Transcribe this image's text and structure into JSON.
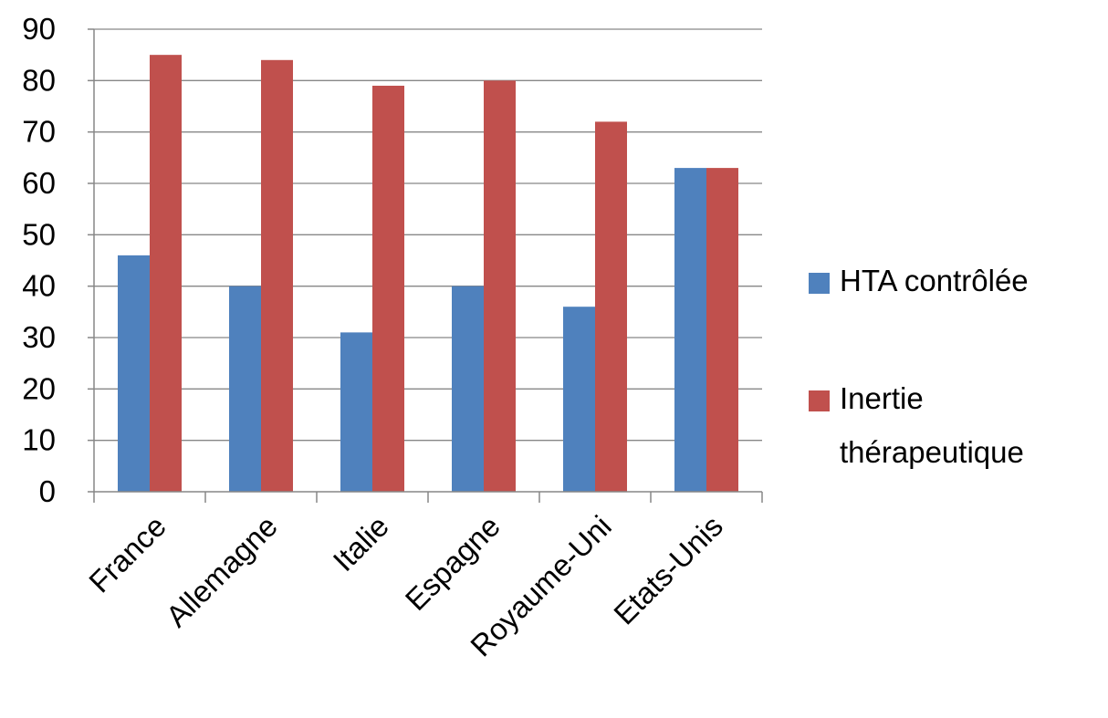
{
  "chart_data": {
    "type": "bar",
    "title": "",
    "xlabel": "",
    "ylabel": "",
    "categories": [
      "France",
      "Allemagne",
      "Italie",
      "Espagne",
      "Royaume-Uni",
      "Etats-Unis"
    ],
    "series": [
      {
        "name": "HTA contrôlée",
        "values": [
          46,
          40,
          31,
          40,
          36,
          63
        ],
        "color": "#4F81BD"
      },
      {
        "name": "Inertie thérapeutique",
        "values": [
          85,
          84,
          79,
          80,
          72,
          63
        ],
        "color": "#C0504D"
      }
    ],
    "ylim": [
      0,
      90
    ],
    "yticks": [
      "0",
      "10",
      "20",
      "30",
      "40",
      "50",
      "60",
      "70",
      "80",
      "90"
    ],
    "grid": true,
    "legend": "right",
    "legend_labels": [
      {
        "lines": [
          "HTA contrôlée"
        ]
      },
      {
        "lines": [
          "Inertie",
          "thérapeutique"
        ]
      }
    ]
  }
}
